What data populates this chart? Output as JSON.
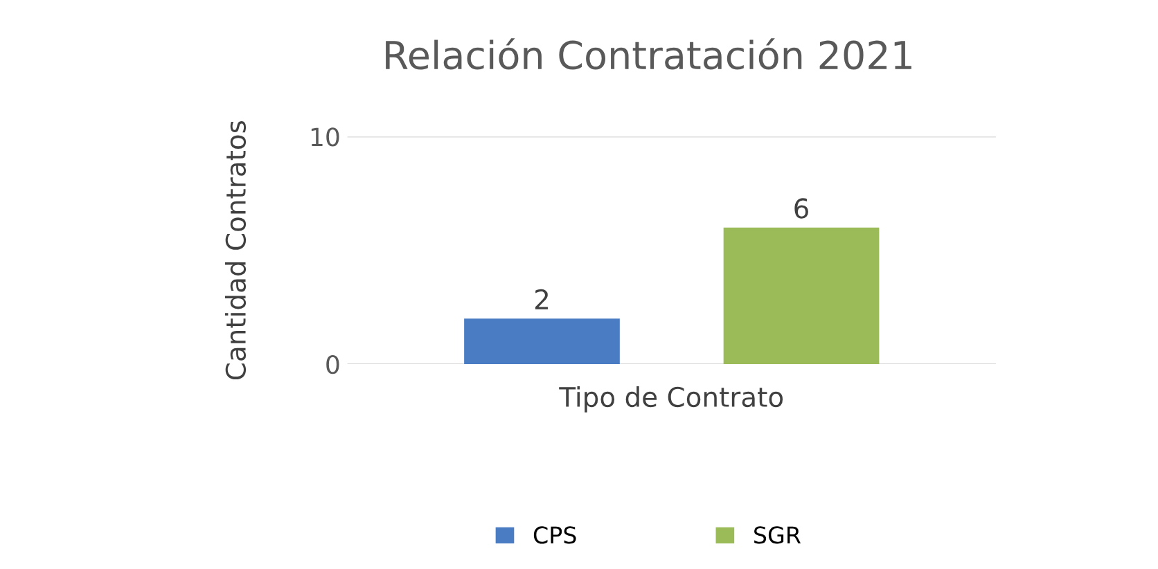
{
  "chart_data": {
    "type": "bar",
    "title": "Relación Contratación 2021",
    "xlabel": "Tipo de Contrato",
    "ylabel": "Cantidad Contratos",
    "categories": [
      null
    ],
    "series": [
      {
        "name": "CPS",
        "color": "#4a7cc4",
        "values": [
          2
        ]
      },
      {
        "name": "SGR",
        "color": "#9bbb59",
        "values": [
          6
        ]
      }
    ],
    "ylim": [
      0,
      10
    ],
    "yticks": [
      0,
      10
    ],
    "grid": "y",
    "legend": "bottom",
    "data_labels": true
  }
}
